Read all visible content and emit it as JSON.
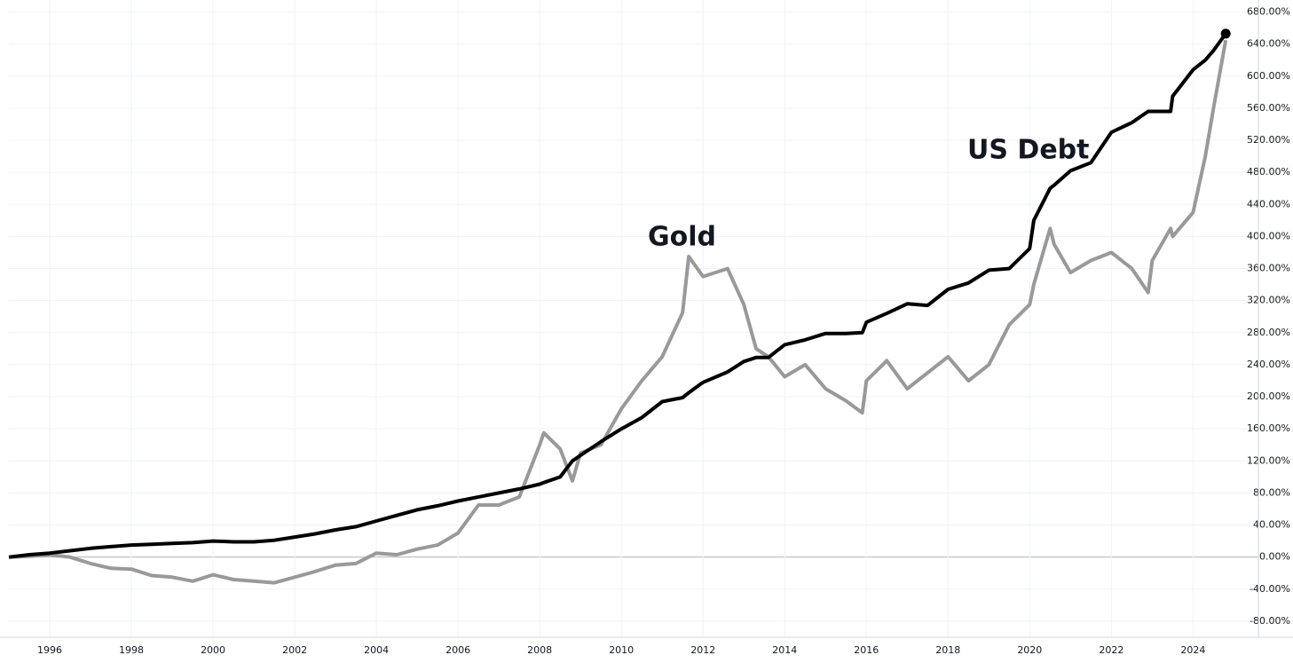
{
  "chart_data": {
    "type": "line",
    "x": [
      1995,
      1995.5,
      1996,
      1996.5,
      1997,
      1997.5,
      1998,
      1998.5,
      1999,
      1999.5,
      2000,
      2000.5,
      2001,
      2001.5,
      2002,
      2002.5,
      2003,
      2003.5,
      2004,
      2004.5,
      2005,
      2005.5,
      2006,
      2006.5,
      2007,
      2007.5,
      2008,
      2008.1,
      2008.5,
      2008.8,
      2009,
      2009.5,
      2010,
      2010.5,
      2011,
      2011.5,
      2011.65,
      2012,
      2012.6,
      2013,
      2013.3,
      2013.6,
      2014,
      2014.5,
      2015,
      2015.5,
      2015.9,
      2016,
      2016.5,
      2017,
      2017.5,
      2018,
      2018.5,
      2019,
      2019.5,
      2020,
      2020.1,
      2020.5,
      2020.6,
      2021,
      2021.5,
      2022,
      2022.5,
      2022.9,
      2023,
      2023.45,
      2023.5,
      2024,
      2024.3,
      2024.5,
      2024.8
    ],
    "series": [
      {
        "name": "Gold",
        "color": "#999999",
        "values": [
          0,
          1,
          3,
          0,
          -8,
          -14,
          -15,
          -23,
          -25,
          -30,
          -22,
          -28,
          -30,
          -32,
          -25,
          -18,
          -10,
          -8,
          5,
          3,
          10,
          15,
          30,
          65,
          65,
          75,
          140,
          155,
          135,
          95,
          130,
          140,
          185,
          220,
          250,
          305,
          375,
          350,
          360,
          315,
          260,
          250,
          225,
          240,
          210,
          195,
          180,
          220,
          245,
          210,
          230,
          250,
          220,
          240,
          290,
          315,
          340,
          410,
          390,
          355,
          370,
          380,
          360,
          330,
          370,
          410,
          400,
          430,
          500,
          560,
          645
        ]
      },
      {
        "name": "US Debt",
        "color": "#000000",
        "values": [
          0,
          3,
          5,
          8,
          11,
          13,
          15,
          16,
          17,
          18,
          20,
          19,
          19,
          21,
          25,
          29,
          34,
          38,
          45,
          52,
          59,
          64,
          70,
          75,
          80,
          85,
          91,
          93,
          100,
          120,
          127,
          144,
          160,
          174,
          194,
          199,
          205,
          218,
          231,
          244,
          249,
          249,
          265,
          271,
          279,
          279,
          280,
          293,
          304,
          316,
          314,
          334,
          342,
          358,
          360,
          385,
          420,
          460,
          464,
          482,
          492,
          530,
          542,
          556,
          556,
          556,
          575,
          608,
          620,
          632,
          653
        ]
      }
    ],
    "xlim": [
      1995,
      2025.6
    ],
    "xticks": [
      1996,
      1998,
      2000,
      2002,
      2004,
      2006,
      2008,
      2010,
      2012,
      2014,
      2016,
      2018,
      2020,
      2022,
      2024
    ],
    "ylim": [
      -100,
      695
    ],
    "yticks": [
      {
        "value": -80,
        "label": "-80.00%"
      },
      {
        "value": -40,
        "label": "-40.00%"
      },
      {
        "value": 0,
        "label": "0.00%"
      },
      {
        "value": 40,
        "label": "40.00%"
      },
      {
        "value": 80,
        "label": "80.00%"
      },
      {
        "value": 120,
        "label": "120.00%"
      },
      {
        "value": 160,
        "label": "160.00%"
      },
      {
        "value": 200,
        "label": "200.00%"
      },
      {
        "value": 240,
        "label": "240.00%"
      },
      {
        "value": 280,
        "label": "280.00%"
      },
      {
        "value": 320,
        "label": "320.00%"
      },
      {
        "value": 360,
        "label": "360.00%"
      },
      {
        "value": 400,
        "label": "400.00%"
      },
      {
        "value": 440,
        "label": "440.00%"
      },
      {
        "value": 480,
        "label": "480.00%"
      },
      {
        "value": 520,
        "label": "520.00%"
      },
      {
        "value": 560,
        "label": "560.00%"
      },
      {
        "value": 600,
        "label": "600.00%"
      },
      {
        "value": 640,
        "label": "640.00%"
      },
      {
        "value": 680,
        "label": "680.00%"
      }
    ],
    "grid": true
  }
}
